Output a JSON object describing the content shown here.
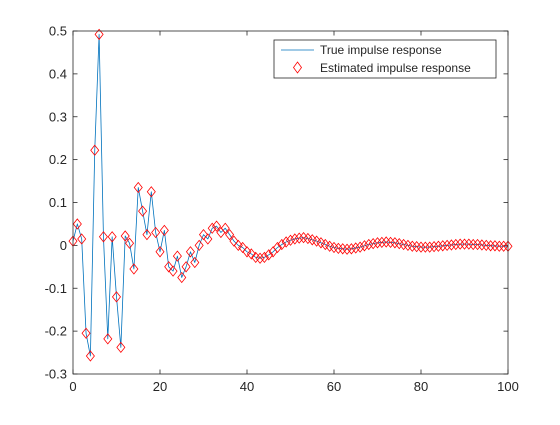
{
  "chart_data": {
    "type": "line",
    "title": "",
    "xlabel": "",
    "ylabel": "",
    "xlim": [
      0,
      100
    ],
    "ylim": [
      -0.3,
      0.5
    ],
    "xticks": [
      0,
      20,
      40,
      60,
      80,
      100
    ],
    "yticks": [
      -0.3,
      -0.2,
      -0.1,
      0,
      0.1,
      0.2,
      0.3,
      0.4,
      0.5
    ],
    "xtick_labels": [
      "0",
      "20",
      "40",
      "60",
      "80",
      "100"
    ],
    "ytick_labels": [
      "-0.3",
      "-0.2",
      "-0.1",
      "0",
      "0.1",
      "0.2",
      "0.3",
      "0.4",
      "0.5"
    ],
    "grid": false,
    "legend_position": "top-right",
    "series": [
      {
        "name": "True impulse response",
        "style": "line",
        "color": "#0072bd",
        "x": [
          0,
          1,
          2,
          3,
          4,
          5,
          6,
          7,
          8,
          9,
          10,
          11,
          12,
          13,
          14,
          15,
          16,
          17,
          18,
          19,
          20,
          21,
          22,
          23,
          24,
          25,
          26,
          27,
          28,
          29,
          30,
          31,
          32,
          33,
          34,
          35,
          36,
          37,
          38,
          39,
          40,
          41,
          42,
          43,
          44,
          45,
          46,
          47,
          48,
          49,
          50,
          51,
          52,
          53,
          54,
          55,
          56,
          57,
          58,
          59,
          60,
          61,
          62,
          63,
          64,
          65,
          66,
          67,
          68,
          69,
          70,
          71,
          72,
          73,
          74,
          75,
          76,
          77,
          78,
          79,
          80,
          81,
          82,
          83,
          84,
          85,
          86,
          87,
          88,
          89,
          90,
          91,
          92,
          93,
          94,
          95,
          96,
          97,
          98,
          99,
          100
        ],
        "values": [
          0.01,
          0.05,
          0.015,
          -0.205,
          -0.258,
          0.222,
          0.492,
          0.02,
          -0.218,
          0.02,
          -0.12,
          -0.238,
          0.022,
          0.005,
          -0.055,
          0.135,
          0.08,
          0.025,
          0.125,
          0.03,
          -0.015,
          0.035,
          -0.05,
          -0.06,
          -0.025,
          -0.075,
          -0.05,
          -0.015,
          -0.04,
          0.0,
          0.025,
          0.015,
          0.04,
          0.045,
          0.03,
          0.04,
          0.025,
          0.01,
          0.0,
          -0.005,
          -0.015,
          -0.02,
          -0.028,
          -0.03,
          -0.028,
          -0.022,
          -0.015,
          -0.005,
          0.002,
          0.008,
          0.012,
          0.015,
          0.017,
          0.018,
          0.016,
          0.013,
          0.01,
          0.006,
          0.002,
          -0.002,
          -0.005,
          -0.007,
          -0.008,
          -0.009,
          -0.008,
          -0.006,
          -0.004,
          -0.001,
          0.002,
          0.004,
          0.006,
          0.007,
          0.008,
          0.007,
          0.006,
          0.004,
          0.002,
          0.0,
          -0.002,
          -0.003,
          -0.004,
          -0.004,
          -0.004,
          -0.003,
          -0.002,
          -0.001,
          0.0,
          0.001,
          0.002,
          0.003,
          0.003,
          0.003,
          0.002,
          0.002,
          0.001,
          0.0,
          -0.001,
          -0.001,
          -0.002,
          -0.002,
          -0.002
        ]
      },
      {
        "name": "Estimated impulse response",
        "style": "markers",
        "marker": "circle",
        "color": "#ff0000",
        "x": [
          0,
          1,
          2,
          3,
          4,
          5,
          6,
          7,
          8,
          9,
          10,
          11,
          12,
          13,
          14,
          15,
          16,
          17,
          18,
          19,
          20,
          21,
          22,
          23,
          24,
          25,
          26,
          27,
          28,
          29,
          30,
          31,
          32,
          33,
          34,
          35,
          36,
          37,
          38,
          39,
          40,
          41,
          42,
          43,
          44,
          45,
          46,
          47,
          48,
          49,
          50,
          51,
          52,
          53,
          54,
          55,
          56,
          57,
          58,
          59,
          60,
          61,
          62,
          63,
          64,
          65,
          66,
          67,
          68,
          69,
          70,
          71,
          72,
          73,
          74,
          75,
          76,
          77,
          78,
          79,
          80,
          81,
          82,
          83,
          84,
          85,
          86,
          87,
          88,
          89,
          90,
          91,
          92,
          93,
          94,
          95,
          96,
          97,
          98,
          99,
          100
        ],
        "values": [
          0.01,
          0.05,
          0.015,
          -0.205,
          -0.258,
          0.222,
          0.492,
          0.02,
          -0.218,
          0.02,
          -0.12,
          -0.238,
          0.022,
          0.005,
          -0.055,
          0.135,
          0.08,
          0.025,
          0.125,
          0.03,
          -0.015,
          0.035,
          -0.05,
          -0.06,
          -0.025,
          -0.075,
          -0.05,
          -0.015,
          -0.04,
          0.0,
          0.025,
          0.015,
          0.04,
          0.045,
          0.03,
          0.04,
          0.025,
          0.01,
          0.0,
          -0.005,
          -0.015,
          -0.02,
          -0.028,
          -0.03,
          -0.028,
          -0.022,
          -0.015,
          -0.005,
          0.002,
          0.008,
          0.012,
          0.015,
          0.017,
          0.018,
          0.016,
          0.013,
          0.01,
          0.006,
          0.002,
          -0.002,
          -0.005,
          -0.007,
          -0.008,
          -0.009,
          -0.008,
          -0.006,
          -0.004,
          -0.001,
          0.002,
          0.004,
          0.006,
          0.007,
          0.008,
          0.007,
          0.006,
          0.004,
          0.002,
          0.0,
          -0.002,
          -0.003,
          -0.004,
          -0.004,
          -0.004,
          -0.003,
          -0.002,
          -0.001,
          0.0,
          0.001,
          0.002,
          0.003,
          0.003,
          0.003,
          0.002,
          0.002,
          0.001,
          0.0,
          -0.001,
          -0.001,
          -0.002,
          -0.002,
          -0.002
        ]
      }
    ]
  }
}
